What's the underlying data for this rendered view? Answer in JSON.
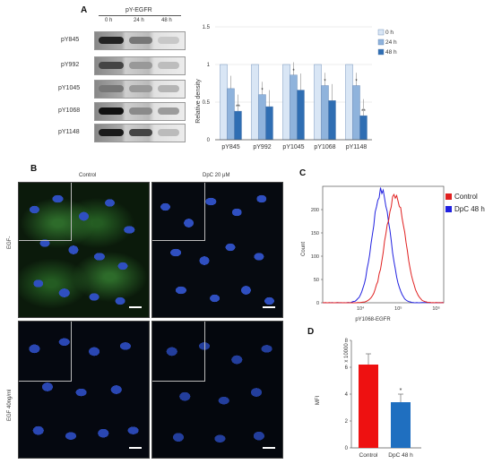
{
  "panelA": {
    "label": "A",
    "blot_title": "pY-EGFR",
    "timepoints": [
      "0 h",
      "24 h",
      "48 h"
    ],
    "rows": [
      "pY845",
      "pY992",
      "pY1045",
      "pY1068",
      "pY1148"
    ]
  },
  "chartA": {
    "type": "bar",
    "ylabel": "Relative density",
    "ylim": [
      0,
      1.5
    ],
    "yticks": [
      "0",
      "0.5",
      "1",
      "1.5"
    ],
    "categories": [
      "pY845",
      "pY992",
      "pY1045",
      "pY1068",
      "pY1148"
    ],
    "series": [
      {
        "name": "0 h",
        "values": [
          1.0,
          1.0,
          1.0,
          1.0,
          1.0
        ],
        "color": "#d9e6f5"
      },
      {
        "name": "24 h",
        "values": [
          0.68,
          0.6,
          0.86,
          0.72,
          0.72
        ],
        "color": "#8fb3dc"
      },
      {
        "name": "48 h",
        "values": [
          0.38,
          0.44,
          0.66,
          0.52,
          0.32
        ],
        "color": "#2f6eb3"
      }
    ],
    "sig": [
      [
        "",
        "**"
      ],
      [
        "*",
        ""
      ],
      [
        "*",
        ""
      ],
      [
        "*",
        ""
      ],
      [
        "*",
        "**"
      ]
    ]
  },
  "panelB": {
    "label": "B",
    "col_labels": [
      "Control",
      "DpC 20 μM"
    ],
    "row_labels": [
      "EGF-",
      "EGF 40ng/ml"
    ]
  },
  "chartC": {
    "label": "C",
    "type": "line",
    "xlabel": "pY1068-EGFR",
    "ylabel": "Count",
    "yticks": [
      "0",
      "50",
      "100",
      "150",
      "200"
    ],
    "xticks": [
      "10⁴",
      "10⁵",
      "10⁶"
    ],
    "legend": [
      "Control",
      "DpC 48 h"
    ],
    "colors": [
      "#e02020",
      "#2020e0"
    ]
  },
  "chartD": {
    "label": "D",
    "type": "bar",
    "ylabel": "MFI",
    "scale_label": "x 10000",
    "yticks": [
      "0",
      "2",
      "4",
      "6",
      "8"
    ],
    "ylim": [
      0,
      8
    ],
    "categories": [
      "Control",
      "DpC 48 h"
    ],
    "values": [
      6.2,
      3.4
    ],
    "errors": [
      0.8,
      0.6
    ],
    "colors": [
      "#ee1111",
      "#1f6fc0"
    ],
    "sig": [
      "",
      "*"
    ]
  }
}
